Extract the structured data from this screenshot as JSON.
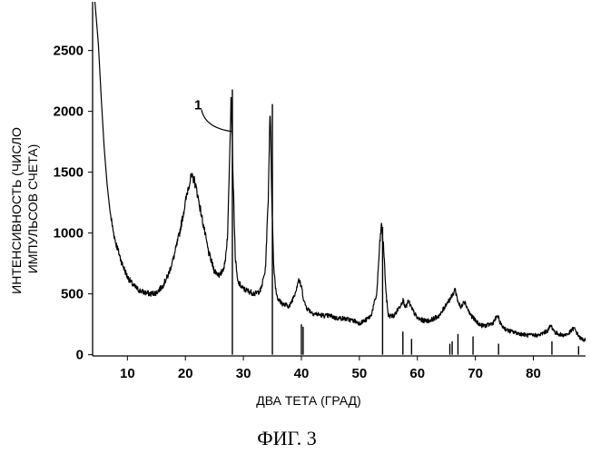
{
  "chart_data": {
    "type": "line",
    "title": "",
    "xlabel": "ДВА ТЕТА (ГРАД)",
    "ylabel_lines": [
      "ИНТЕНСИВНОСТЬ (ЧИСЛО",
      "ИМПУЛЬСОВ СЧЕТА)"
    ],
    "caption": "ФИГ. 3",
    "xlim": [
      4,
      89
    ],
    "ylim": [
      -10,
      2900
    ],
    "xticks": [
      10,
      20,
      30,
      40,
      50,
      60,
      70,
      80
    ],
    "yticks": [
      0,
      500,
      1000,
      1500,
      2000,
      2500
    ],
    "grid": false,
    "series": [
      {
        "style": "noisy-line",
        "x": [
          4.4,
          5.0,
          5.5,
          6.0,
          6.5,
          7.0,
          7.5,
          8.0,
          9.0,
          10.0,
          11.0,
          12.0,
          13.0,
          14.0,
          15.0,
          16.0,
          17.0,
          18.0,
          19.0,
          20.0,
          20.5,
          21.0,
          21.5,
          22.0,
          23.0,
          24.0,
          25.0,
          26.0,
          26.8,
          27.3,
          27.6,
          27.9,
          28.2,
          28.6,
          29.0,
          30.0,
          31.0,
          32.0,
          33.0,
          33.8,
          34.3,
          34.6,
          34.9,
          35.2,
          35.6,
          36.0,
          37.0,
          38.0,
          39.0,
          39.5,
          40.0,
          40.5,
          41.0,
          42.0,
          43.0,
          44.0,
          45.0,
          46.0,
          47.0,
          48.0,
          49.0,
          50.0,
          51.0,
          52.0,
          53.0,
          53.5,
          53.8,
          54.2,
          54.6,
          55.0,
          56.0,
          57.0,
          57.5,
          58.0,
          58.5,
          59.0,
          60.0,
          61.0,
          62.0,
          63.0,
          64.0,
          65.0,
          66.0,
          66.5,
          67.0,
          67.5,
          68.0,
          68.5,
          69.0,
          70.0,
          71.0,
          72.0,
          73.0,
          73.8,
          74.5,
          75.5,
          77.0,
          79.0,
          81.0,
          82.5,
          83.0,
          83.8,
          85.0,
          86.0,
          87.0,
          87.6,
          88.2,
          89.0
        ],
        "y": [
          2900,
          2550,
          2100,
          1700,
          1400,
          1180,
          1030,
          920,
          760,
          640,
          570,
          530,
          510,
          500,
          510,
          560,
          650,
          800,
          1000,
          1250,
          1380,
          1460,
          1440,
          1340,
          1090,
          840,
          690,
          650,
          740,
          1000,
          1600,
          2180,
          1500,
          800,
          600,
          540,
          520,
          500,
          530,
          700,
          1300,
          2060,
          1300,
          750,
          530,
          450,
          410,
          400,
          520,
          620,
          560,
          430,
          380,
          340,
          330,
          320,
          320,
          300,
          300,
          290,
          280,
          260,
          280,
          320,
          500,
          900,
          1070,
          870,
          500,
          320,
          320,
          400,
          450,
          390,
          440,
          380,
          300,
          280,
          280,
          300,
          330,
          420,
          480,
          540,
          440,
          380,
          450,
          400,
          340,
          280,
          240,
          240,
          260,
          320,
          240,
          200,
          180,
          160,
          160,
          200,
          240,
          180,
          160,
          170,
          220,
          170,
          130,
          120
        ]
      }
    ],
    "reference_lines": {
      "x": [
        28.1,
        35.0,
        40.0,
        40.3,
        54.0,
        57.5,
        59.0,
        65.6,
        66.0,
        67.0,
        69.6,
        74.0,
        83.2,
        87.8
      ],
      "y": [
        2180,
        2060,
        250,
        230,
        1050,
        190,
        130,
        90,
        110,
        170,
        150,
        90,
        110,
        70
      ]
    },
    "annotations": [
      {
        "text": "1",
        "x": 28.1,
        "y": 1850
      }
    ]
  }
}
